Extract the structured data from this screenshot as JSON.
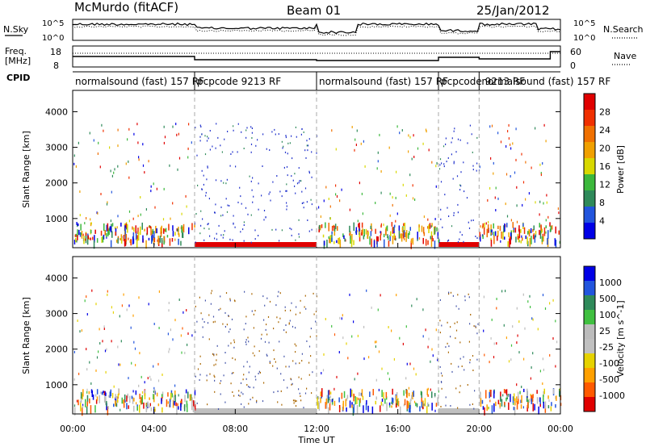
{
  "header": {
    "station": "McMurdo (fitACF)",
    "beam": "Beam 01",
    "date": "25/Jan/2012"
  },
  "side_labels": {
    "nsky": "N.Sky",
    "nsearch": "N.Search",
    "freq_line1": "Freq.",
    "freq_line2": "[MHz]",
    "nave": "Nave",
    "cpid": "CPID",
    "noise_ticks": [
      "10^5",
      "10^0"
    ],
    "freq_ticks": [
      "18",
      "8"
    ],
    "nave_ticks": [
      "60",
      "0"
    ]
  },
  "cpid_segments": [
    {
      "label": "normalsound (fast) 157 RF",
      "start_hour": 0.0
    },
    {
      "label": "pcpcode 9213 RF",
      "start_hour": 6.0
    },
    {
      "label": "normalsound (fast) 157 RF",
      "start_hour": 12.0
    },
    {
      "label": "pcpcode 9213 RF",
      "start_hour": 18.0
    },
    {
      "label": "normalsound (fast) 157 RF",
      "start_hour": 20.0
    }
  ],
  "colors": {
    "power": [
      "#0000e6",
      "#2255dd",
      "#2f8a5a",
      "#3cb83c",
      "#d8d800",
      "#f0a000",
      "#f07000",
      "#f03000",
      "#e00000"
    ],
    "velocity": [
      "#e00000",
      "#ff5a00",
      "#ffa000",
      "#e6d200",
      "#c0c0c0",
      "#bcbcbc",
      "#40c040",
      "#2f8a5a",
      "#2255dd",
      "#0000e6"
    ]
  },
  "chart_data": [
    {
      "type": "heatmap",
      "title": "",
      "xlabel": "Time UT",
      "ylabel": "Slant Range [km]",
      "x_range_hours": [
        0,
        24
      ],
      "xticks": [
        "00:00",
        "04:00",
        "08:00",
        "12:00",
        "16:00",
        "20:00",
        "00:00"
      ],
      "ylim": [
        180,
        4600
      ],
      "yticks": [
        "1000",
        "2000",
        "3000",
        "4000"
      ],
      "colorbar": {
        "label": "Power [dB]",
        "ticks": [
          "4",
          "8",
          "12",
          "16",
          "20",
          "24",
          "28"
        ],
        "range": [
          0,
          30
        ]
      }
    },
    {
      "type": "heatmap",
      "title": "",
      "xlabel": "Time UT",
      "ylabel": "Slant Range [km]",
      "x_range_hours": [
        0,
        24
      ],
      "xticks": [
        "00:00",
        "04:00",
        "08:00",
        "12:00",
        "16:00",
        "20:00",
        "00:00"
      ],
      "ylim": [
        180,
        4600
      ],
      "yticks": [
        "1000",
        "2000",
        "3000",
        "4000"
      ],
      "colorbar": {
        "label": "Velocity [m s^-1]",
        "ticks": [
          "1000",
          "500",
          "100",
          "25",
          "-25",
          "-100",
          "-500",
          "-1000"
        ],
        "range": [
          -1000,
          1000
        ]
      }
    }
  ]
}
